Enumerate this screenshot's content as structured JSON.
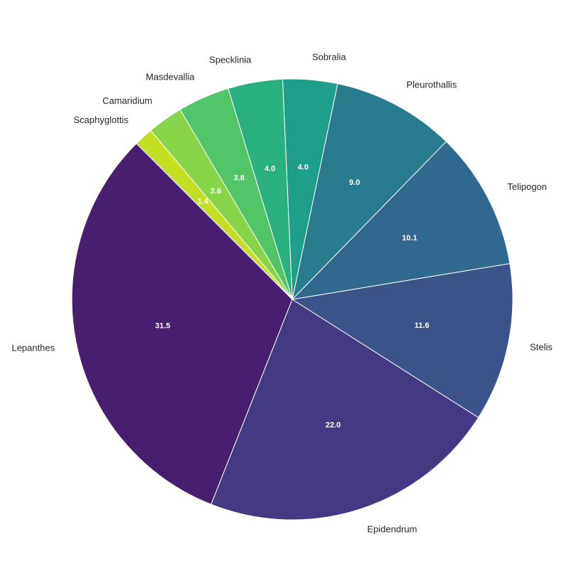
{
  "chart_data": {
    "type": "pie",
    "categories": [
      "Lepanthes",
      "Epidendrum",
      "Stelis",
      "Telipogon",
      "Pleurothallis",
      "Sobralia",
      "Specklinia",
      "Masdevallia",
      "Camaridium",
      "Scaphyglottis"
    ],
    "values": [
      31.5,
      22.0,
      11.6,
      10.1,
      9.0,
      4.0,
      4.0,
      3.8,
      2.6,
      1.4
    ],
    "value_labels": [
      "31.5",
      "22.0",
      "11.6",
      "10.1",
      "9.0",
      "4.0",
      "4.0",
      "3.8",
      "2.6",
      "1.4"
    ],
    "colors": [
      "#481f70",
      "#443983",
      "#3b528b",
      "#31688e",
      "#287c8e",
      "#1f9e89",
      "#2ab07f",
      "#52c569",
      "#86d549",
      "#c2df23"
    ]
  }
}
